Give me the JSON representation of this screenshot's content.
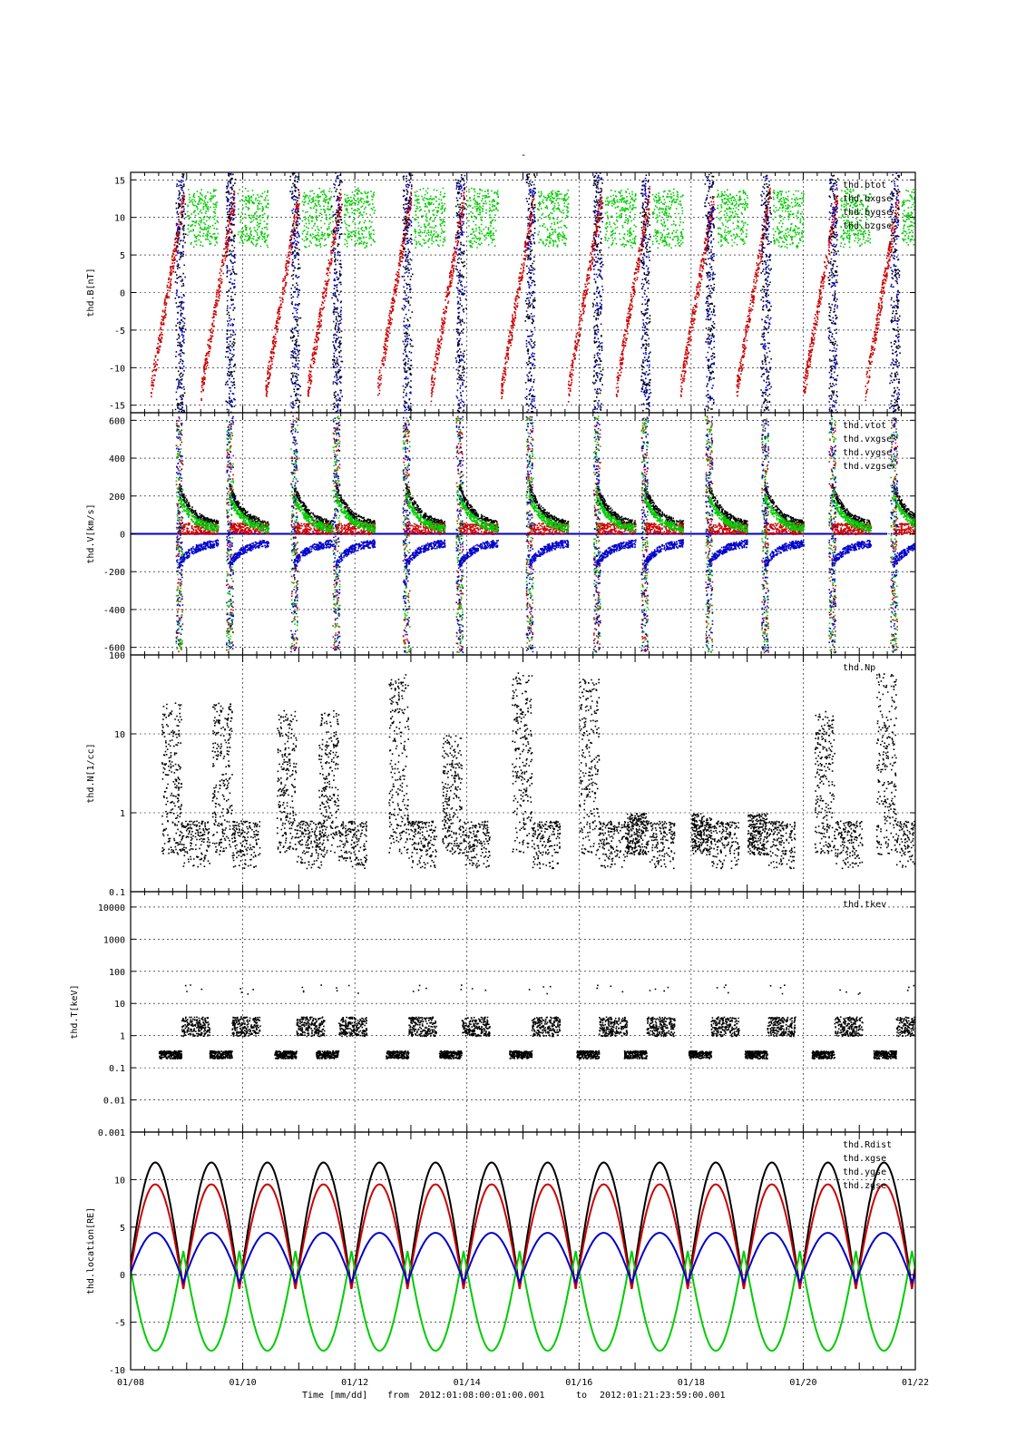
{
  "page": {
    "title_mark": "-",
    "footer": {
      "axis_label": "Time [mm/dd]",
      "from_label": "from",
      "from_value": "2012:01:08:00:01:00.001",
      "to_label": "to",
      "to_value": "2012:01:21:23:59:00.001"
    },
    "time_ticks": [
      "01/08",
      "01/10",
      "01/12",
      "01/14",
      "01/16",
      "01/18",
      "01/20",
      "01/22"
    ]
  },
  "colors": {
    "black": "#000000",
    "red": "#cc0000",
    "green": "#00cc00",
    "blue": "#0000cc",
    "grid": "#000000"
  },
  "chart_data": [
    {
      "type": "scatter",
      "id": "B",
      "ylabel": "thd.B[nT]",
      "scale": "linear",
      "ylim": [
        -16,
        16
      ],
      "yticks": [
        15,
        10,
        5,
        0,
        -5,
        -10,
        -15
      ],
      "xlim": [
        0,
        14
      ],
      "series": [
        {
          "name": "thd.btot",
          "color": "#000000"
        },
        {
          "name": "thd.bxgse",
          "color": "#cc0000"
        },
        {
          "name": "thd.bygse",
          "color": "#00cc00"
        },
        {
          "name": "thd.bzgse",
          "color": "#0000cc"
        }
      ]
    },
    {
      "type": "scatter",
      "id": "V",
      "ylabel": "thd.V[km/s]",
      "scale": "linear",
      "ylim": [
        -640,
        640
      ],
      "yticks": [
        600,
        400,
        200,
        0,
        -200,
        -400,
        -600
      ],
      "xlim": [
        0,
        14
      ],
      "series": [
        {
          "name": "thd.vtot",
          "color": "#000000"
        },
        {
          "name": "thd.vxgse",
          "color": "#cc0000"
        },
        {
          "name": "thd.vygse",
          "color": "#00cc00"
        },
        {
          "name": "thd.vzgse",
          "color": "#0000cc"
        }
      ]
    },
    {
      "type": "scatter",
      "id": "N",
      "ylabel": "thd.N[1/cc]",
      "scale": "log",
      "ylim": [
        0.1,
        100
      ],
      "yticks": [
        "100",
        "10",
        "1",
        "0.1"
      ],
      "yticks_val": [
        100,
        10,
        1,
        0.1
      ],
      "xlim": [
        0,
        14
      ],
      "series": [
        {
          "name": "thd.Np",
          "color": "#000000"
        }
      ]
    },
    {
      "type": "scatter",
      "id": "T",
      "ylabel": "thd.T[keV]",
      "scale": "log",
      "ylim": [
        0.001,
        30000
      ],
      "yticks": [
        "10000",
        "1000",
        "100",
        "10",
        "1",
        "0.1",
        "0.01",
        "0.001"
      ],
      "yticks_val": [
        10000,
        1000,
        100,
        10,
        1,
        0.1,
        0.01,
        0.001
      ],
      "xlim": [
        0,
        14
      ],
      "series": [
        {
          "name": "thd.tkev",
          "color": "#000000"
        }
      ]
    },
    {
      "type": "line",
      "id": "L",
      "ylabel": "thd.location[RE]",
      "scale": "linear",
      "ylim": [
        -10,
        15
      ],
      "yticks": [
        10,
        5,
        0,
        -5,
        -10
      ],
      "xlim": [
        0,
        14
      ],
      "orbit_period_days": 1,
      "series": [
        {
          "name": "thd.Rdist",
          "color": "#000000",
          "min": -1.5,
          "max": 11.8
        },
        {
          "name": "thd.xgse",
          "color": "#cc0000",
          "min": -1.5,
          "max": 9.5
        },
        {
          "name": "thd.ygse",
          "color": "#00cc00",
          "min": -8.0,
          "max": 2.5
        },
        {
          "name": "thd.zgse",
          "color": "#0000cc",
          "min": -0.8,
          "max": 4.4
        }
      ]
    }
  ]
}
